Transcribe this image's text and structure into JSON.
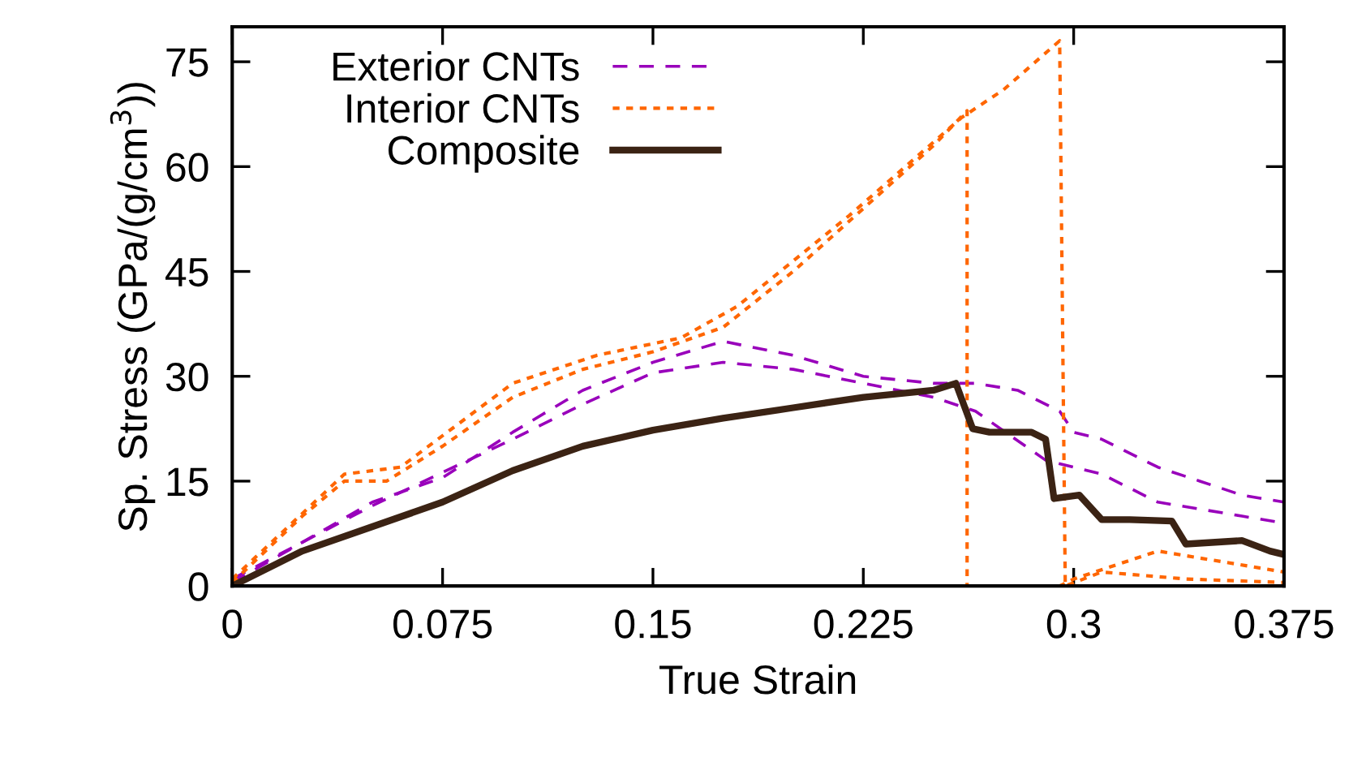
{
  "chart_data": {
    "type": "line",
    "xlabel": "True Strain",
    "ylabel": "Sp. Stress (GPa/(g/cm$^{3}$))",
    "xlim": [
      0,
      0.375
    ],
    "ylim": [
      0,
      80
    ],
    "xticks": [
      0,
      0.075,
      0.15,
      0.225,
      0.3,
      0.375
    ],
    "yticks": [
      0,
      15,
      30,
      45,
      60,
      75
    ],
    "grid": false,
    "legend": "top left",
    "marker": "none",
    "series": [
      {
        "name": "Exterior CNTs",
        "color": "#9900bb",
        "line_style": "dashed",
        "x": [
          0,
          0.05,
          0.075,
          0.1,
          0.125,
          0.15,
          0.175,
          0.2,
          0.225,
          0.25,
          0.265,
          0.28,
          0.295,
          0.3,
          0.31,
          0.33,
          0.345,
          0.36,
          0.375
        ],
        "values": [
          0.5,
          12,
          15.5,
          22,
          28,
          32,
          35,
          33,
          30,
          29,
          29,
          28,
          25,
          22,
          21,
          17,
          15,
          13,
          12
        ]
      },
      {
        "color": "#9900bb",
        "line_style": "dashed",
        "x": [
          0,
          0.05,
          0.1,
          0.125,
          0.15,
          0.175,
          0.2,
          0.225,
          0.25,
          0.265,
          0.29,
          0.31,
          0.33,
          0.36,
          0.375
        ],
        "values": [
          1,
          11.5,
          21,
          26,
          30.5,
          32,
          31,
          29,
          27,
          25,
          18,
          16,
          12,
          10,
          9
        ]
      },
      {
        "name": "Interior CNTs",
        "color": "#ff6600",
        "line_style": "dotted",
        "x": [
          0,
          0.025,
          0.04,
          0.055,
          0.075,
          0.1,
          0.125,
          0.15,
          0.175,
          0.2,
          0.225,
          0.25,
          0.262,
          0.262,
          0.295,
          0.3,
          0.33,
          0.375
        ],
        "values": [
          0.5,
          10,
          15,
          15,
          20,
          27,
          31,
          33.5,
          37,
          45,
          54,
          63,
          68,
          0,
          0,
          1,
          5,
          2
        ]
      },
      {
        "color": "#ff6600",
        "line_style": "dotted",
        "x": [
          0,
          0.04,
          0.06,
          0.1,
          0.13,
          0.16,
          0.18,
          0.22,
          0.26,
          0.275,
          0.295,
          0.297,
          0.31,
          0.34,
          0.375
        ],
        "values": [
          1,
          16,
          17,
          29,
          33,
          35.5,
          40,
          53,
          67,
          71,
          78,
          0,
          2,
          1,
          0.5
        ]
      },
      {
        "name": "Composite",
        "color": "#3b2314",
        "line_style": "solid",
        "x": [
          0,
          0.025,
          0.05,
          0.075,
          0.1,
          0.125,
          0.15,
          0.175,
          0.2,
          0.225,
          0.25,
          0.258,
          0.264,
          0.27,
          0.285,
          0.29,
          0.293,
          0.302,
          0.31,
          0.32,
          0.335,
          0.34,
          0.36,
          0.37,
          0.375
        ],
        "values": [
          0,
          5,
          8.5,
          12,
          16.5,
          20,
          22.3,
          24,
          25.5,
          27,
          28,
          29,
          22.5,
          22,
          22,
          21,
          12.5,
          13,
          9.5,
          9.5,
          9.3,
          6,
          6.5,
          5,
          4.5
        ]
      }
    ]
  }
}
